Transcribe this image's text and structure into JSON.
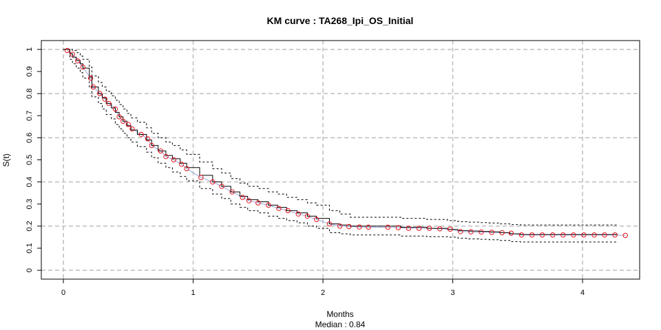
{
  "chart_data": {
    "type": "line",
    "title": "KM curve : TA268_Ipi_OS_Initial",
    "xlabel": "Months",
    "subtitle": "Median : 0.84",
    "ylabel": "S(t)",
    "xlim": [
      -0.17,
      4.44
    ],
    "ylim": [
      -0.04,
      1.04
    ],
    "x_ticks": [
      0,
      1,
      2,
      3,
      4
    ],
    "y_ticks": [
      0,
      0.1,
      0.2,
      0.3,
      0.4,
      0.5,
      0.6,
      0.7,
      0.8,
      0.9,
      1
    ],
    "x_grid": [
      0,
      1,
      2,
      3,
      4
    ],
    "y_grid": [
      0,
      0.2,
      0.4,
      0.6,
      0.8,
      1
    ],
    "grid": true,
    "series": [
      {
        "role": "km-estimate",
        "x": [
          0,
          0.05,
          0.07,
          0.1,
          0.13,
          0.15,
          0.2,
          0.22,
          0.27,
          0.3,
          0.33,
          0.37,
          0.4,
          0.43,
          0.46,
          0.49,
          0.52,
          0.57,
          0.64,
          0.68,
          0.73,
          0.79,
          0.84,
          0.9,
          0.95,
          1.05,
          1.15,
          1.22,
          1.29,
          1.36,
          1.42,
          1.5,
          1.58,
          1.65,
          1.72,
          1.8,
          1.88,
          1.95,
          2.05,
          2.13,
          2.21,
          2.29,
          2.37,
          2.5,
          2.6,
          2.8,
          2.96,
          3.04,
          3.12,
          3.2,
          3.28,
          3.36,
          3.44,
          3.52,
          3.6,
          4.27
        ],
        "y": [
          1,
          0.98,
          0.965,
          0.95,
          0.935,
          0.915,
          0.875,
          0.83,
          0.8,
          0.78,
          0.755,
          0.735,
          0.715,
          0.695,
          0.675,
          0.655,
          0.635,
          0.615,
          0.59,
          0.565,
          0.54,
          0.52,
          0.505,
          0.485,
          0.465,
          0.43,
          0.4,
          0.38,
          0.355,
          0.335,
          0.32,
          0.31,
          0.295,
          0.285,
          0.27,
          0.26,
          0.245,
          0.235,
          0.21,
          0.205,
          0.2,
          0.2,
          0.2,
          0.2,
          0.195,
          0.19,
          0.185,
          0.18,
          0.178,
          0.176,
          0.174,
          0.17,
          0.165,
          0.162,
          0.162,
          0.162
        ]
      },
      {
        "role": "ci-upper",
        "x": [
          0,
          0.05,
          0.07,
          0.1,
          0.13,
          0.15,
          0.2,
          0.22,
          0.27,
          0.3,
          0.33,
          0.37,
          0.4,
          0.43,
          0.46,
          0.49,
          0.52,
          0.57,
          0.64,
          0.68,
          0.73,
          0.79,
          0.84,
          0.9,
          0.95,
          1.05,
          1.15,
          1.22,
          1.29,
          1.36,
          1.42,
          1.5,
          1.58,
          1.65,
          1.72,
          1.8,
          1.88,
          1.95,
          2.05,
          2.13,
          2.21,
          2.29,
          2.37,
          2.5,
          2.6,
          2.8,
          2.96,
          3.04,
          3.12,
          3.2,
          3.28,
          3.36,
          3.44,
          3.52,
          3.6,
          4.27
        ],
        "y": [
          1,
          1,
          0.995,
          0.985,
          0.97,
          0.955,
          0.92,
          0.88,
          0.85,
          0.83,
          0.81,
          0.79,
          0.77,
          0.75,
          0.73,
          0.71,
          0.69,
          0.67,
          0.645,
          0.62,
          0.6,
          0.58,
          0.565,
          0.545,
          0.525,
          0.49,
          0.46,
          0.44,
          0.415,
          0.395,
          0.38,
          0.37,
          0.355,
          0.345,
          0.33,
          0.32,
          0.305,
          0.295,
          0.27,
          0.255,
          0.24,
          0.24,
          0.24,
          0.24,
          0.235,
          0.23,
          0.225,
          0.22,
          0.218,
          0.216,
          0.214,
          0.21,
          0.207,
          0.205,
          0.205,
          0.205
        ]
      },
      {
        "role": "ci-lower",
        "x": [
          0,
          0.05,
          0.07,
          0.1,
          0.13,
          0.15,
          0.2,
          0.22,
          0.27,
          0.3,
          0.33,
          0.37,
          0.4,
          0.43,
          0.46,
          0.49,
          0.52,
          0.57,
          0.64,
          0.68,
          0.73,
          0.79,
          0.84,
          0.9,
          0.95,
          1.05,
          1.15,
          1.22,
          1.29,
          1.36,
          1.42,
          1.5,
          1.58,
          1.65,
          1.72,
          1.8,
          1.88,
          1.95,
          2.05,
          2.13,
          2.21,
          2.29,
          2.37,
          2.5,
          2.6,
          2.8,
          2.96,
          3.04,
          3.12,
          3.2,
          3.28,
          3.36,
          3.44,
          3.52,
          3.6,
          4.27
        ],
        "y": [
          1,
          0.955,
          0.935,
          0.915,
          0.895,
          0.87,
          0.83,
          0.785,
          0.755,
          0.73,
          0.705,
          0.685,
          0.66,
          0.64,
          0.62,
          0.6,
          0.58,
          0.56,
          0.535,
          0.51,
          0.485,
          0.465,
          0.445,
          0.425,
          0.405,
          0.37,
          0.345,
          0.325,
          0.3,
          0.285,
          0.27,
          0.26,
          0.245,
          0.235,
          0.225,
          0.215,
          0.2,
          0.19,
          0.17,
          0.165,
          0.16,
          0.16,
          0.16,
          0.16,
          0.155,
          0.152,
          0.15,
          0.145,
          0.142,
          0.14,
          0.138,
          0.135,
          0.13,
          0.128,
          0.128,
          0.128
        ]
      },
      {
        "role": "model-points",
        "color": "#e8141c",
        "x": [
          0.03,
          0.07,
          0.11,
          0.15,
          0.21,
          0.23,
          0.28,
          0.32,
          0.35,
          0.4,
          0.43,
          0.46,
          0.5,
          0.53,
          0.6,
          0.65,
          0.68,
          0.75,
          0.79,
          0.85,
          0.91,
          0.95,
          1.06,
          1.15,
          1.22,
          1.3,
          1.38,
          1.43,
          1.5,
          1.58,
          1.66,
          1.73,
          1.81,
          1.88,
          1.95,
          2.05,
          2.13,
          2.2,
          2.28,
          2.35,
          2.5,
          2.58,
          2.66,
          2.74,
          2.82,
          2.9,
          2.98,
          3.06,
          3.14,
          3.22,
          3.3,
          3.38,
          3.45,
          3.53,
          3.61,
          3.69,
          3.77,
          3.85,
          3.93,
          4.01,
          4.09,
          4.17,
          4.25,
          4.33
        ],
        "y": [
          0.995,
          0.978,
          0.948,
          0.92,
          0.87,
          0.83,
          0.8,
          0.775,
          0.755,
          0.73,
          0.695,
          0.675,
          0.66,
          0.64,
          0.615,
          0.595,
          0.565,
          0.54,
          0.515,
          0.5,
          0.48,
          0.46,
          0.42,
          0.4,
          0.38,
          0.355,
          0.33,
          0.315,
          0.305,
          0.295,
          0.28,
          0.27,
          0.255,
          0.245,
          0.23,
          0.21,
          0.2,
          0.198,
          0.196,
          0.195,
          0.195,
          0.193,
          0.19,
          0.19,
          0.19,
          0.188,
          0.186,
          0.175,
          0.174,
          0.173,
          0.172,
          0.17,
          0.168,
          0.16,
          0.16,
          0.16,
          0.16,
          0.16,
          0.16,
          0.16,
          0.16,
          0.16,
          0.16,
          0.158
        ]
      }
    ]
  }
}
